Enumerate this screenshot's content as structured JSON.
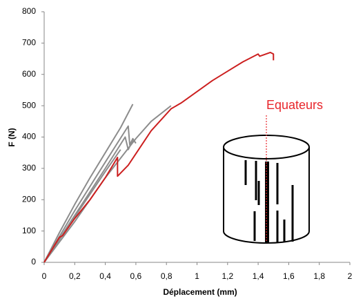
{
  "chart_data": {
    "type": "line",
    "xlabel": "Déplacement (mm)",
    "ylabel": "F (N)",
    "annotation": "Equateurs",
    "annotation_color": "#e8252b",
    "xlim": [
      0,
      2
    ],
    "ylim": [
      0,
      800
    ],
    "xticks": [
      0,
      {
        "value": 0.2,
        "label": "0,2"
      },
      {
        "value": 0.4,
        "label": "0,4"
      },
      {
        "value": 0.6,
        "label": "0,6"
      },
      {
        "value": 0.8,
        "label": "0,8"
      },
      1,
      {
        "value": 1.2,
        "label": "1,2"
      },
      {
        "value": 1.4,
        "label": "1,4"
      },
      {
        "value": 1.6,
        "label": "1,6"
      },
      {
        "value": 1.8,
        "label": "1,8"
      },
      2
    ],
    "yticks": [
      0,
      100,
      200,
      300,
      400,
      500,
      600,
      700,
      800
    ],
    "series": [
      {
        "color": "#8c8c8c",
        "x": [
          0,
          0.1,
          0.2,
          0.3,
          0.4,
          0.5,
          0.58
        ],
        "values": [
          0,
          95,
          185,
          270,
          350,
          430,
          505
        ]
      },
      {
        "color": "#8c8c8c",
        "x": [
          0,
          0.2,
          0.4,
          0.55,
          0.56,
          0.58,
          0.6
        ],
        "values": [
          0,
          165,
          320,
          435,
          375,
          395,
          380
        ]
      },
      {
        "color": "#8c8c8c",
        "x": [
          0,
          0.2,
          0.4,
          0.53,
          0.55,
          0.58
        ],
        "values": [
          0,
          150,
          300,
          400,
          360,
          390
        ]
      },
      {
        "color": "#8c8c8c",
        "x": [
          0,
          0.2,
          0.4,
          0.6,
          0.7,
          0.83
        ],
        "values": [
          0,
          130,
          270,
          395,
          450,
          500
        ]
      },
      {
        "color": "#8c8c8c",
        "x": [
          0,
          0.2,
          0.4,
          0.5
        ],
        "values": [
          0,
          145,
          290,
          360
        ]
      },
      {
        "color": "#cc1f1f",
        "x": [
          0,
          0.1,
          0.12,
          0.2,
          0.3,
          0.4,
          0.48,
          0.48,
          0.55,
          0.7,
          0.83,
          0.9,
          1.0,
          1.1,
          1.2,
          1.3,
          1.4,
          1.41,
          1.48,
          1.5,
          1.5
        ],
        "values": [
          0,
          80,
          85,
          140,
          200,
          270,
          335,
          275,
          310,
          420,
          490,
          510,
          545,
          580,
          610,
          640,
          665,
          658,
          670,
          665,
          645
        ]
      }
    ]
  }
}
